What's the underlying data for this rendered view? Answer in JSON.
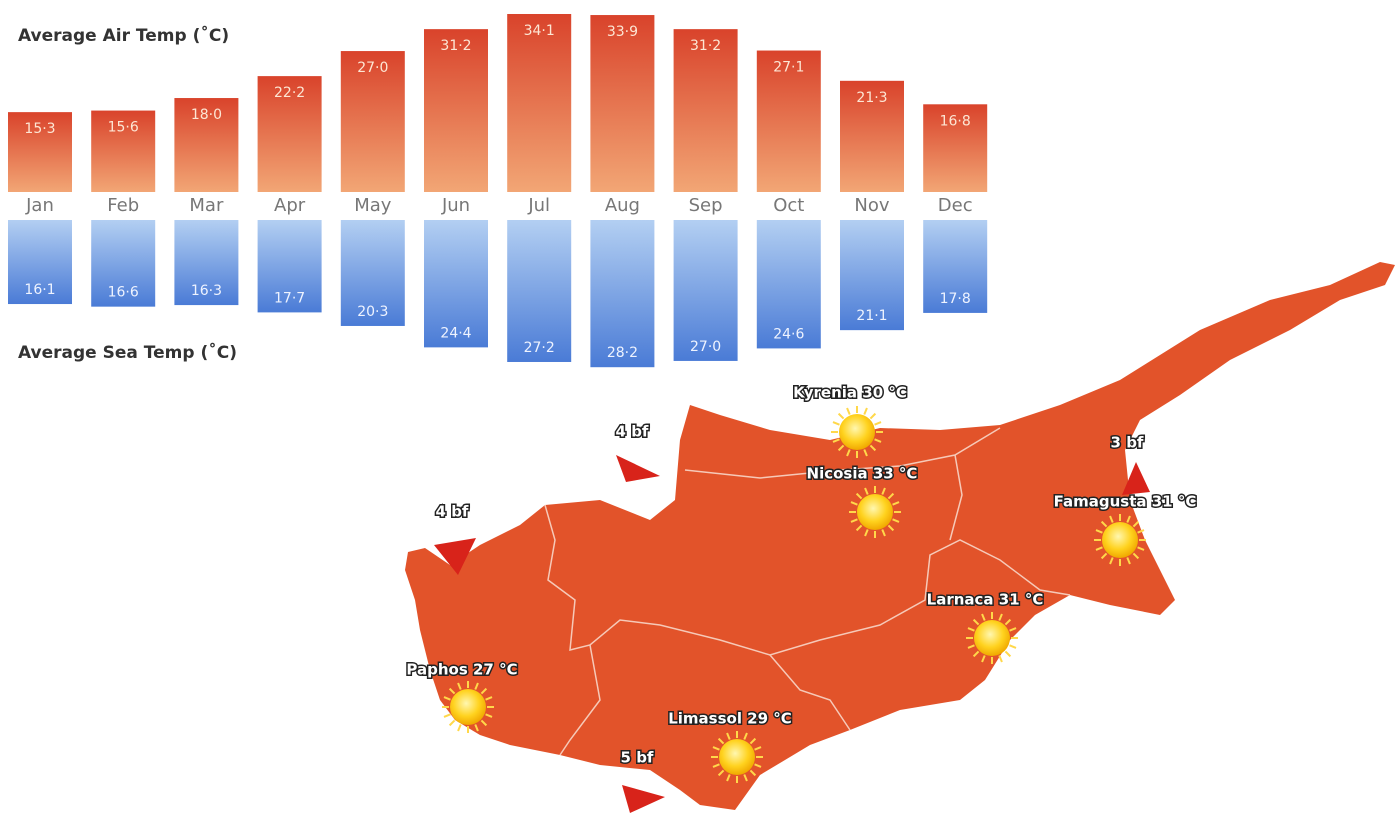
{
  "chart_data": {
    "type": "mirror-bar",
    "categories": [
      "Jan",
      "Feb",
      "Mar",
      "Apr",
      "May",
      "Jun",
      "Jul",
      "Aug",
      "Sep",
      "Oct",
      "Nov",
      "Dec"
    ],
    "series": [
      {
        "name": "Average Air Temp (˚C)",
        "color": "#d9432b",
        "values": [
          15.3,
          15.6,
          18.0,
          22.2,
          27.0,
          31.2,
          34.1,
          33.9,
          31.2,
          27.1,
          21.3,
          16.8
        ],
        "value_labels": [
          "15·3",
          "15·6",
          "18·0",
          "22·2",
          "27·0",
          "31·2",
          "34·1",
          "33·9",
          "31·2",
          "27·1",
          "21·3",
          "16·8"
        ]
      },
      {
        "name": "Average Sea Temp (˚C)",
        "color": "#4a7bd6",
        "values": [
          16.1,
          16.6,
          16.3,
          17.7,
          20.3,
          24.4,
          27.2,
          28.2,
          27.0,
          24.6,
          21.1,
          17.8
        ],
        "value_labels": [
          "16·1",
          "16·6",
          "16·3",
          "17·7",
          "20·3",
          "24·4",
          "27·2",
          "28·2",
          "27·0",
          "24·6",
          "21·1",
          "17·8"
        ]
      }
    ]
  },
  "map": {
    "cities": [
      {
        "label": "Kyrenia 30 °C"
      },
      {
        "label": "Nicosia 33 °C"
      },
      {
        "label": "Famagusta 31 °C"
      },
      {
        "label": "Larnaca 31 °C"
      },
      {
        "label": "Limassol 29 °C"
      },
      {
        "label": "Paphos 27 °C"
      }
    ],
    "winds": [
      {
        "label": "4 bf"
      },
      {
        "label": "4 bf"
      },
      {
        "label": "3 bf"
      },
      {
        "label": "5 bf"
      }
    ]
  }
}
